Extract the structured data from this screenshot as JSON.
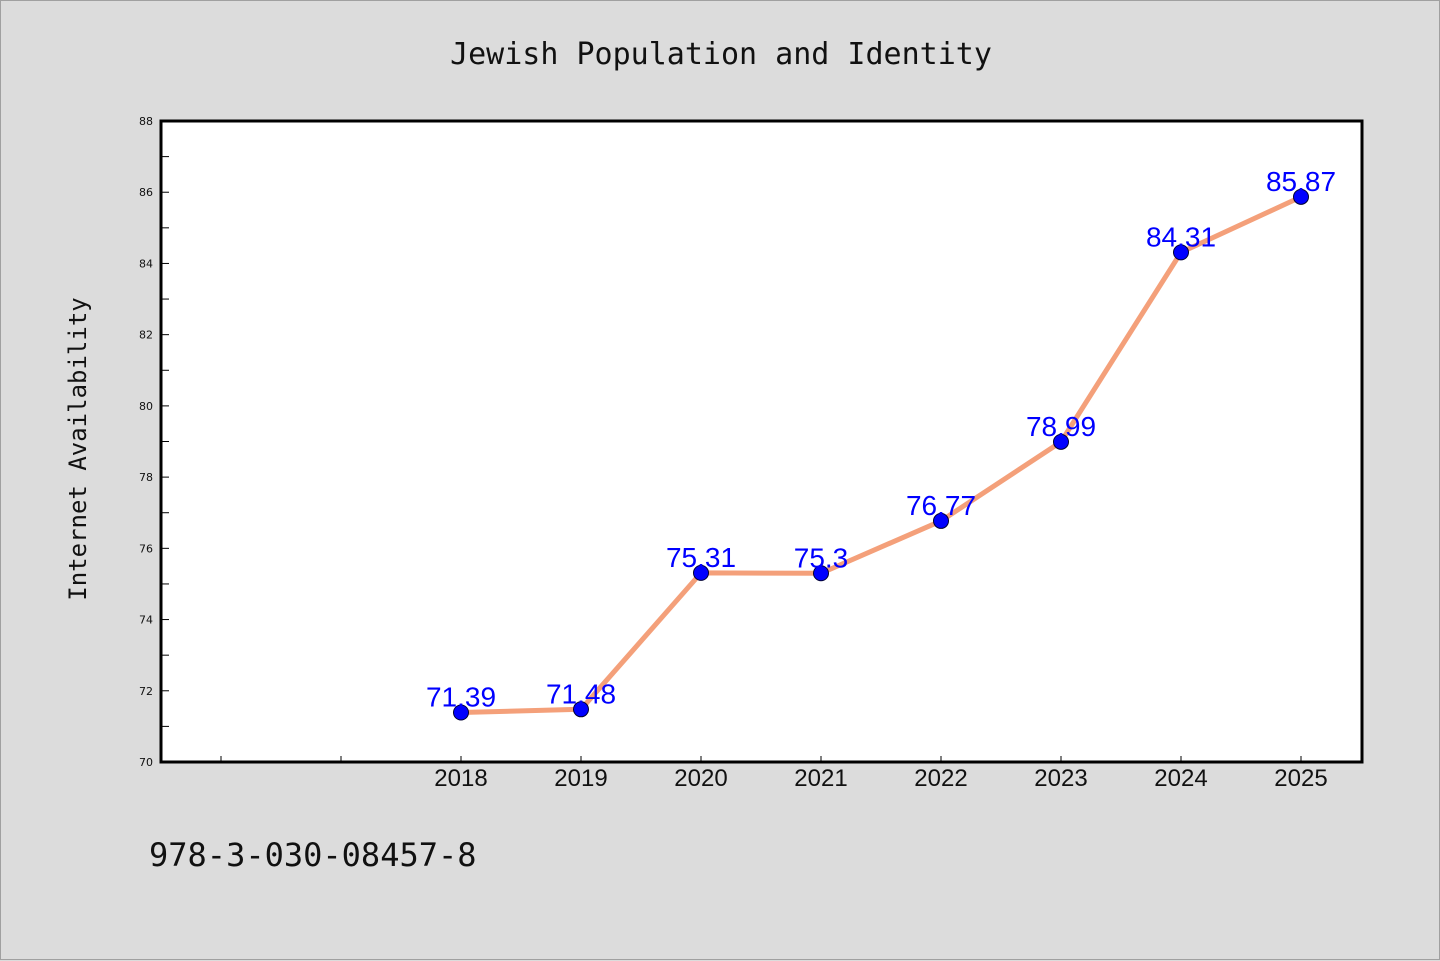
{
  "chart_data": {
    "type": "line",
    "title": "Jewish Population and Identity",
    "xlabel": "",
    "ylabel": "Internet Availability",
    "categories": [
      "2018",
      "2019",
      "2020",
      "2021",
      "2022",
      "2023",
      "2024",
      "2025"
    ],
    "series": [
      {
        "values": [
          71.39,
          71.48,
          75.31,
          75.3,
          76.77,
          78.99,
          84.31,
          85.87
        ],
        "data_labels": [
          "71.39",
          "71.48",
          "75.31",
          "75.3",
          "76.77",
          "78.99",
          "84.31",
          "85.87"
        ],
        "line_color": "#f4a07a",
        "marker_color": "#0000ff"
      }
    ],
    "ylim": [
      70,
      88
    ],
    "yticks": [
      "70",
      "72",
      "74",
      "76",
      "78",
      "80",
      "82",
      "84",
      "86",
      "88"
    ],
    "grid": false,
    "legend": "none"
  },
  "footer": {
    "isbn": "978-3-030-08457-8"
  },
  "colors": {
    "background": "#dcdcdc",
    "plot_area": "#ffffff",
    "line": "#f4a07a",
    "marker": "#0000ff",
    "data_label": "#0000ff"
  }
}
